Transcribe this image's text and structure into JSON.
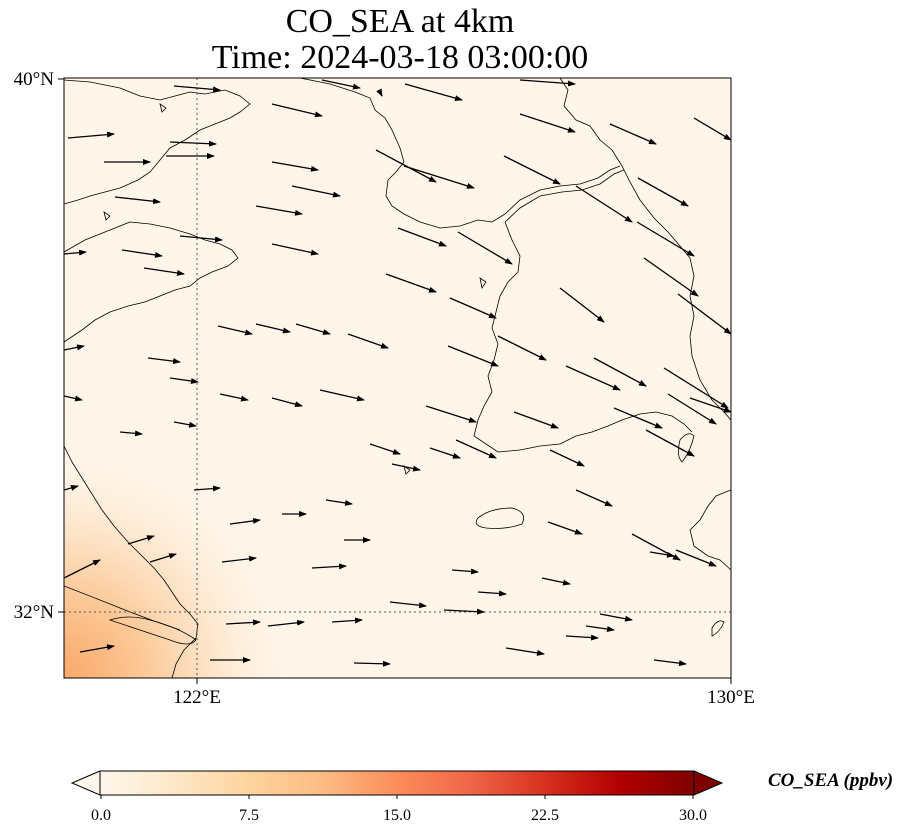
{
  "title": {
    "line1": "CO_SEA at 4km",
    "line2": "Time: 2024-03-18 03:00:00"
  },
  "map": {
    "lat_range": [
      31,
      40
    ],
    "lon_range": [
      120,
      130
    ],
    "lat_ticks": [
      {
        "value": 40,
        "label": "40°N"
      },
      {
        "value": 32,
        "label": "32°N"
      }
    ],
    "lon_ticks": [
      {
        "value": 122,
        "label": "122°E"
      },
      {
        "value": 130,
        "label": "130°E"
      }
    ],
    "gridlines": {
      "lon": [
        122
      ],
      "lat": [
        32
      ],
      "style": "dotted"
    },
    "background_color": "#fff5e8",
    "enhanced_region": "southwest corner (Yangtze River mouth)",
    "wind_direction": "westerly to northwesterly"
  },
  "colorbar": {
    "label": "CO_SEA (ppbv)",
    "min": 0.0,
    "max": 30.0,
    "ticks": [
      "0.0",
      "7.5",
      "15.0",
      "22.5",
      "30.0"
    ],
    "colormap": [
      "#fff7ec",
      "#fee8c8",
      "#fdd49e",
      "#fdbb84",
      "#fc8d59",
      "#ef6548",
      "#d7301f",
      "#b30000",
      "#7f0000"
    ],
    "extend": "both"
  }
}
